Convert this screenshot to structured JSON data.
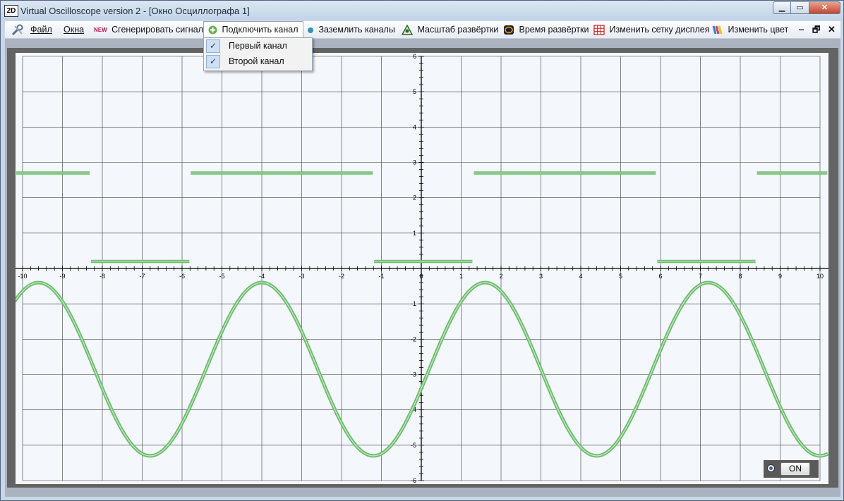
{
  "window": {
    "app_icon": "2D",
    "title": "Virtual Oscilloscope version 2 - [Окно Осциллографа 1]",
    "min_label": "▁",
    "max_label": "▭",
    "close_label": "✕"
  },
  "menu": {
    "file": "Файл",
    "windows": "Окна",
    "generate_badge": "NEW",
    "generate": "Сгенерировать сигнал",
    "connect": "Подключить канал",
    "ground": "Заземлить каналы",
    "scale": "Масштаб развёртки",
    "time": "Время развёртки",
    "grid": "Изменить сетку дисплея",
    "color": "Изменить цвет",
    "mdi_minimize": "‒",
    "mdi_restore": "🗗",
    "mdi_close": "✕"
  },
  "dropdown": {
    "items": [
      {
        "label": "Первый канал",
        "checked": true
      },
      {
        "label": "Второй канал",
        "checked": true
      }
    ],
    "check_glyph": "✓"
  },
  "icons": {
    "app_menu": "tools-icon",
    "connect": "green-plus-icon",
    "ground": "dot-icon",
    "scale": "triangle-icon",
    "time": "clock-icon",
    "grid": "grid-icon",
    "color": "color-icon"
  },
  "controls": {
    "on_label": "ON"
  },
  "chart_data": {
    "type": "line",
    "xlim": [
      -10,
      10
    ],
    "ylim": [
      -6,
      6
    ],
    "xticks": [
      -10,
      -9,
      -8,
      -7,
      -6,
      -5,
      -4,
      -3,
      -2,
      -1,
      0,
      1,
      2,
      3,
      4,
      5,
      6,
      7,
      8,
      9,
      10
    ],
    "yticks": [
      -6,
      -5,
      -4,
      -3,
      -2,
      -1,
      1,
      2,
      3,
      4,
      5,
      6
    ],
    "grid": true,
    "colors": {
      "background": "#f4f7fc",
      "grid": "#3a3a3a",
      "trace": "#6fbd6f",
      "trace_core": "#c8eac8"
    },
    "series": [
      {
        "shape": "square",
        "high": 2.7,
        "low": 0.2,
        "segments": [
          {
            "x": [
              -10.2,
              -8.3
            ],
            "y": 2.7
          },
          {
            "x": [
              -8.3,
              -5.8
            ],
            "y": 0.2
          },
          {
            "x": [
              -5.8,
              -1.2
            ],
            "y": 2.7
          },
          {
            "x": [
              -1.2,
              1.3
            ],
            "y": 0.2
          },
          {
            "x": [
              1.3,
              5.9
            ],
            "y": 2.7
          },
          {
            "x": [
              5.9,
              8.4
            ],
            "y": 0.2
          },
          {
            "x": [
              8.4,
              10.2
            ],
            "y": 2.7
          }
        ]
      },
      {
        "shape": "sine",
        "amplitude": 2.45,
        "offset": -2.85,
        "period": 5.6,
        "peak_x": 1.6,
        "x_range": [
          -10.2,
          10.2
        ]
      }
    ]
  }
}
